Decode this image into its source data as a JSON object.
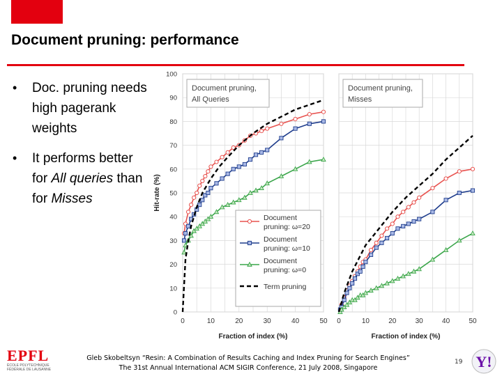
{
  "slide": {
    "title": "Document pruning: performance",
    "bullets": [
      {
        "text": "Doc. pruning needs high pagerank weights"
      },
      {
        "pre": "It performs better for ",
        "em1": "All queries",
        "mid": " than for ",
        "em2": "Misses"
      }
    ],
    "footer_line1": "Gleb Skobeltsyn “Resin: A Combination of Results Caching and Index Pruning for Search Engines”",
    "footer_line2": "The 31st Annual International ACM SIGIR Conference, 21 July 2008, Singapore",
    "page_number": "19",
    "logo_left_text": "EPFL",
    "logo_left_sub1": "ÉCOLE POLYTECHNIQUE",
    "logo_left_sub2": "FÉDÉRALE DE LAUSANNE",
    "logo_right_text": "Y!",
    "colors": {
      "accent": "#e3000f",
      "red": "#e8524f",
      "blue": "#1f3d8c",
      "green": "#3aa54a",
      "black": "#000000"
    }
  },
  "chart_data": [
    {
      "type": "line",
      "panel_label": "Document pruning, All Queries",
      "xlabel": "Fraction of index (%)",
      "ylabel": "Hit-rate (%)",
      "xlim": [
        0,
        50
      ],
      "ylim": [
        0,
        100
      ],
      "xticks": [
        0,
        10,
        20,
        30,
        40,
        50
      ],
      "yticks": [
        0,
        10,
        20,
        30,
        40,
        50,
        60,
        70,
        80,
        90,
        100
      ],
      "grid": true,
      "legend": {
        "placement": "bottom-right",
        "entries": [
          {
            "label": "Document pruning: ω=20",
            "series": 0
          },
          {
            "label": "Document pruning: ω=10",
            "series": 1
          },
          {
            "label": "Document pruning: ω=0",
            "series": 2
          },
          {
            "label": "Term pruning",
            "series": 3
          }
        ]
      },
      "series": [
        {
          "name": "Document pruning: ω=20",
          "color": "#e8524f",
          "marker": "circle",
          "x": [
            0.5,
            1,
            2,
            3,
            4,
            5,
            6,
            7,
            8,
            9,
            10,
            12,
            14,
            16,
            18,
            20,
            22,
            24,
            26,
            28,
            30,
            35,
            40,
            45,
            50
          ],
          "y": [
            33,
            37,
            42,
            45,
            48,
            50,
            53,
            55,
            57,
            59,
            61,
            63,
            65,
            67,
            69,
            70,
            72,
            74,
            75,
            76,
            77,
            79,
            81,
            83,
            84
          ]
        },
        {
          "name": "Document pruning: ω=10",
          "color": "#1f3d8c",
          "marker": "square",
          "x": [
            0.5,
            1,
            2,
            3,
            4,
            5,
            6,
            7,
            8,
            9,
            10,
            12,
            14,
            16,
            18,
            20,
            22,
            24,
            26,
            28,
            30,
            35,
            40,
            45,
            50
          ],
          "y": [
            30,
            33,
            36,
            39,
            41,
            43,
            45,
            47,
            49,
            50,
            52,
            54,
            56,
            58,
            60,
            61,
            62,
            64,
            66,
            67,
            68,
            73,
            77,
            79,
            80
          ]
        },
        {
          "name": "Document pruning: ω=0",
          "color": "#3aa54a",
          "marker": "triangle",
          "x": [
            0.5,
            1,
            2,
            3,
            4,
            5,
            6,
            7,
            8,
            9,
            10,
            12,
            14,
            16,
            18,
            20,
            22,
            24,
            26,
            28,
            30,
            35,
            40,
            45,
            50
          ],
          "y": [
            25,
            28,
            30,
            32,
            34,
            35,
            36,
            37,
            38,
            39,
            40,
            42,
            44,
            45,
            46,
            47,
            48,
            50,
            51,
            52,
            54,
            57,
            60,
            63,
            64
          ]
        },
        {
          "name": "Term pruning",
          "color": "#000000",
          "marker": "none",
          "dashed": true,
          "x": [
            0,
            1,
            2,
            3,
            5,
            7,
            10,
            13,
            16,
            20,
            25,
            30,
            35,
            40,
            45,
            50
          ],
          "y": [
            0,
            22,
            30,
            36,
            44,
            50,
            56,
            61,
            65,
            70,
            75,
            79,
            82,
            85,
            87,
            89
          ]
        }
      ]
    },
    {
      "type": "line",
      "panel_label": "Document pruning, Misses",
      "xlabel": "Fraction of index (%)",
      "ylabel": "",
      "xlim": [
        0,
        50
      ],
      "ylim": [
        0,
        100
      ],
      "xticks": [
        0,
        10,
        20,
        30,
        40,
        50
      ],
      "grid": true,
      "series": [
        {
          "name": "Document pruning: ω=20",
          "color": "#e8524f",
          "marker": "circle",
          "x": [
            0.5,
            1,
            2,
            3,
            4,
            5,
            6,
            7,
            8,
            9,
            10,
            12,
            14,
            16,
            18,
            20,
            22,
            24,
            26,
            28,
            30,
            35,
            40,
            45,
            50
          ],
          "y": [
            1,
            3,
            6,
            9,
            11,
            13,
            15,
            17,
            19,
            21,
            22,
            26,
            29,
            32,
            35,
            37,
            40,
            42,
            44,
            46,
            48,
            52,
            56,
            59,
            60
          ]
        },
        {
          "name": "Document pruning: ω=10",
          "color": "#1f3d8c",
          "marker": "square",
          "x": [
            0.5,
            1,
            2,
            3,
            4,
            5,
            6,
            7,
            8,
            9,
            10,
            12,
            14,
            16,
            18,
            20,
            22,
            24,
            26,
            28,
            30,
            35,
            40,
            45,
            50
          ],
          "y": [
            1,
            2,
            5,
            8,
            10,
            12,
            14,
            16,
            17,
            19,
            21,
            24,
            27,
            29,
            31,
            33,
            35,
            36,
            37,
            38,
            39,
            42,
            47,
            50,
            51
          ]
        },
        {
          "name": "Document pruning: ω=0",
          "color": "#3aa54a",
          "marker": "triangle",
          "x": [
            0.5,
            1,
            2,
            3,
            4,
            5,
            6,
            7,
            8,
            9,
            10,
            12,
            14,
            16,
            18,
            20,
            22,
            24,
            26,
            28,
            30,
            35,
            40,
            45,
            50
          ],
          "y": [
            0,
            1,
            2,
            3,
            4,
            5,
            5,
            6,
            7,
            7,
            8,
            9,
            10,
            11,
            12,
            13,
            14,
            15,
            16,
            17,
            18,
            22,
            26,
            30,
            33
          ]
        },
        {
          "name": "Term pruning",
          "color": "#000000",
          "marker": "none",
          "dashed": true,
          "x": [
            0,
            2,
            5,
            10,
            15,
            20,
            25,
            30,
            35,
            40,
            45,
            50
          ],
          "y": [
            0,
            8,
            17,
            28,
            35,
            42,
            48,
            53,
            58,
            64,
            69,
            74
          ]
        }
      ]
    }
  ]
}
